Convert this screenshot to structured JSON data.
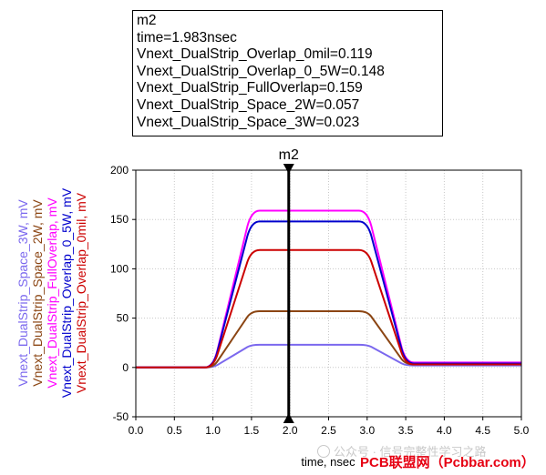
{
  "marker": {
    "name": "m2",
    "lines": [
      "m2",
      "time=1.983nsec",
      "Vnext_DualStrip_Overlap_0mil=0.119",
      "Vnext_DualStrip_Overlap_0_5W=0.148",
      "Vnext_DualStrip_FullOverlap=0.159",
      "Vnext_DualStrip_Space_2W=0.057",
      "Vnext_DualStrip_Space_3W=0.023"
    ]
  },
  "watermark": "公众号 · 信号完整性学习之路",
  "brand": "PCB联盟网（Pcbbar.com）",
  "chart_data": {
    "type": "line",
    "xlabel": "time, nsec",
    "xlim": [
      0,
      5
    ],
    "ylim": [
      -50,
      200
    ],
    "xticks": [
      "0.0",
      "0.5",
      "1.0",
      "1.5",
      "2.0",
      "2.5",
      "3.0",
      "3.5",
      "4.0",
      "4.5",
      "5.0"
    ],
    "yticks": [
      "-50",
      "0",
      "50",
      "100",
      "150",
      "200"
    ],
    "grid": true,
    "marker_x": 1.983,
    "series": [
      {
        "name": "Vnext_DualStrip_Space_3W, mV",
        "color": "#7b68ee",
        "peak": 23,
        "x": [
          0,
          1.0,
          1.5,
          3.0,
          3.5,
          5.0
        ],
        "y": [
          0,
          0,
          23,
          23,
          2,
          2
        ]
      },
      {
        "name": "Vnext_DualStrip_Space_2W, mV",
        "color": "#8b4513",
        "peak": 57,
        "x": [
          0,
          1.0,
          1.5,
          3.0,
          3.5,
          5.0
        ],
        "y": [
          0,
          0,
          57,
          57,
          3,
          3
        ]
      },
      {
        "name": "Vnext_DualStrip_FullOverlap, mV",
        "color": "#ff00ff",
        "peak": 159,
        "x": [
          0,
          1.0,
          1.5,
          3.0,
          3.5,
          5.0
        ],
        "y": [
          0,
          0,
          159,
          159,
          5,
          5
        ]
      },
      {
        "name": "Vnext_DualStrip_Overlap_0_5W, mV",
        "color": "#0000cd",
        "peak": 148,
        "x": [
          0,
          1.0,
          1.5,
          3.0,
          3.5,
          5.0
        ],
        "y": [
          0,
          0,
          148,
          148,
          4,
          4
        ]
      },
      {
        "name": "Vnext_DualStrip_Overlap_0mil, mV",
        "color": "#cc0000",
        "peak": 119,
        "x": [
          0,
          1.0,
          1.5,
          3.0,
          3.5,
          5.0
        ],
        "y": [
          0,
          0,
          119,
          119,
          3,
          3
        ]
      }
    ]
  }
}
